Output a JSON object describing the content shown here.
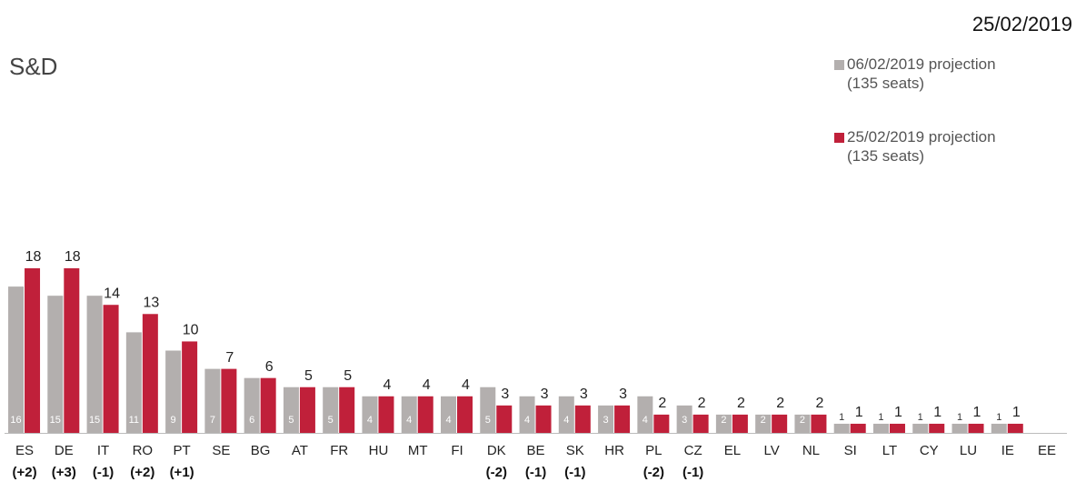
{
  "chart_data": {
    "type": "bar",
    "title": "S&D",
    "date": "25/02/2019",
    "categories": [
      "ES",
      "DE",
      "IT",
      "RO",
      "PT",
      "SE",
      "BG",
      "AT",
      "FR",
      "HU",
      "MT",
      "FI",
      "DK",
      "BE",
      "SK",
      "HR",
      "PL",
      "CZ",
      "EL",
      "LV",
      "NL",
      "SI",
      "LT",
      "CY",
      "LU",
      "IE",
      "EE"
    ],
    "changes": [
      "(+2)",
      "(+3)",
      "(-1)",
      "(+2)",
      "(+1)",
      null,
      null,
      null,
      null,
      null,
      null,
      null,
      "(-2)",
      "(-1)",
      "(-1)",
      null,
      "(-2)",
      "(-1)",
      null,
      null,
      null,
      null,
      null,
      null,
      null,
      null,
      null
    ],
    "series": [
      {
        "name": "06/02/2019 projection\n(135 seats)",
        "color": "#b3afae",
        "values": [
          16,
          15,
          15,
          11,
          9,
          7,
          6,
          5,
          5,
          4,
          4,
          4,
          5,
          4,
          4,
          3,
          4,
          3,
          2,
          2,
          2,
          1,
          1,
          1,
          1,
          1,
          null
        ]
      },
      {
        "name": "25/02/2019 projection\n(135 seats)",
        "color": "#c0203a",
        "values": [
          18,
          18,
          14,
          13,
          10,
          7,
          6,
          5,
          5,
          4,
          4,
          4,
          3,
          3,
          3,
          3,
          2,
          2,
          2,
          2,
          2,
          1,
          1,
          1,
          1,
          1,
          null
        ]
      }
    ],
    "ylim": [
      0,
      18
    ]
  }
}
